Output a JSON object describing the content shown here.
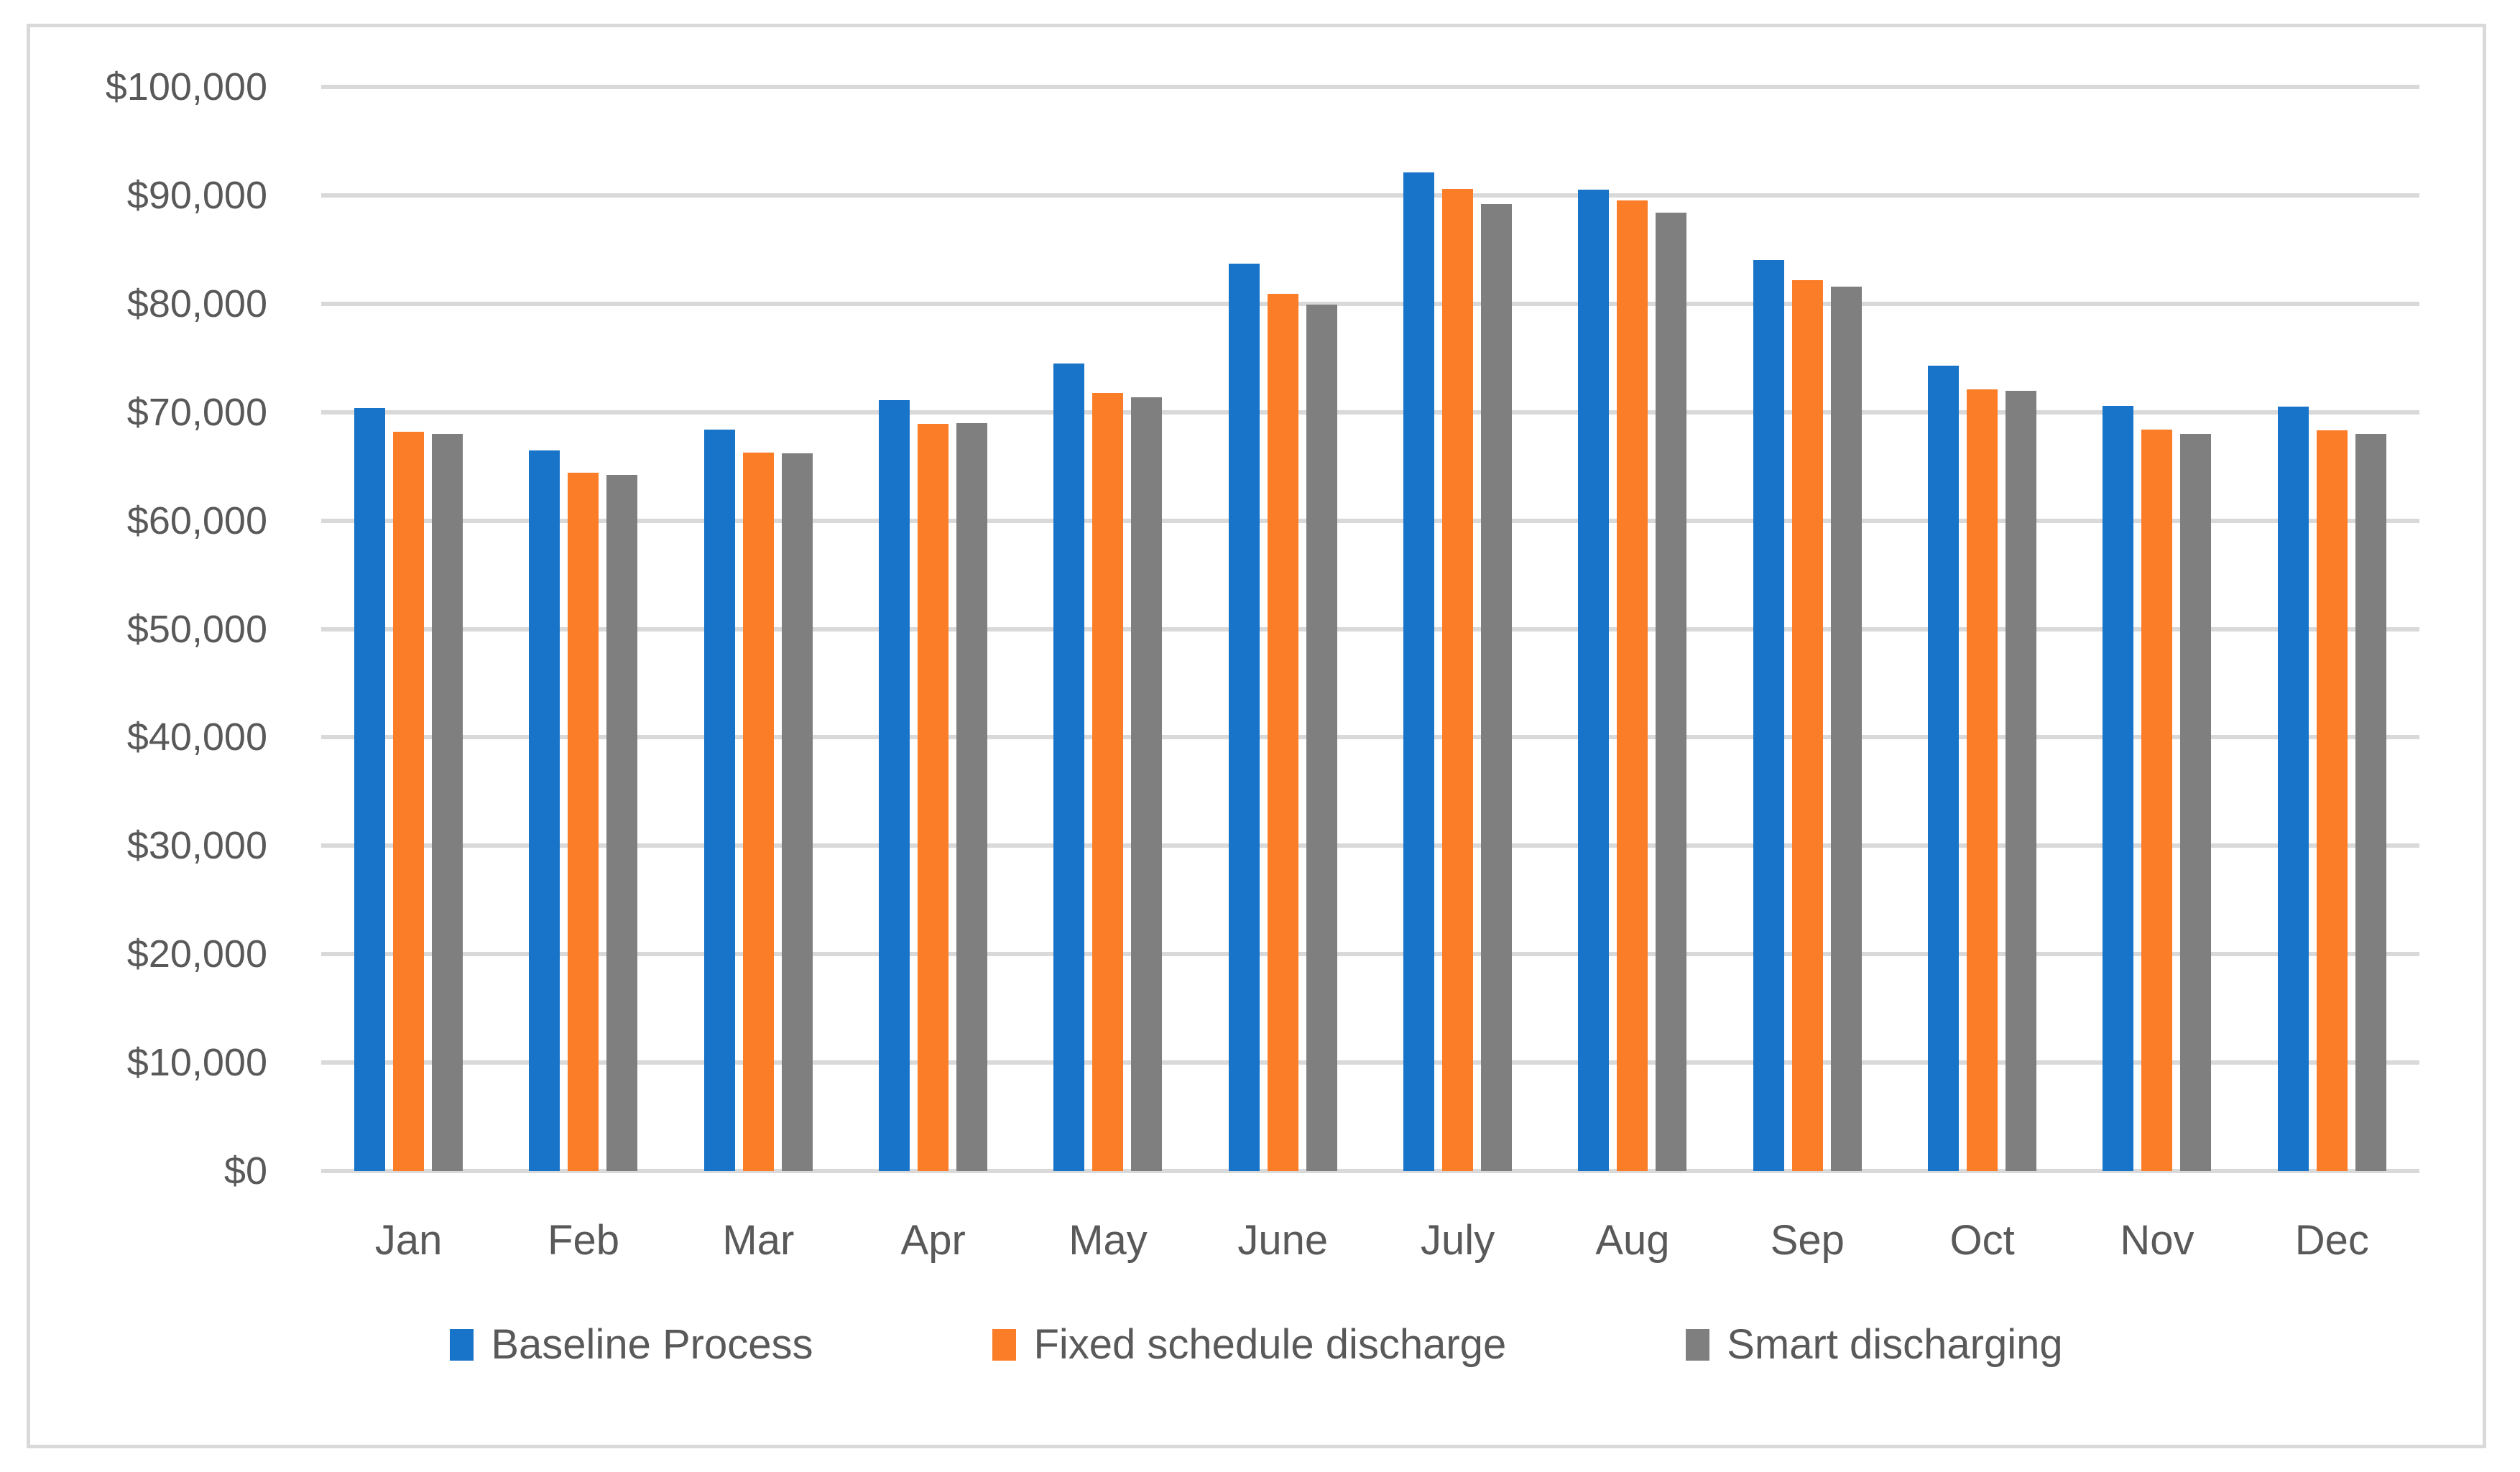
{
  "chart_data": {
    "type": "bar",
    "title": "",
    "categories": [
      "Jan",
      "Feb",
      "Mar",
      "Apr",
      "May",
      "June",
      "July",
      "Aug",
      "Sep",
      "Oct",
      "Nov",
      "Dec"
    ],
    "series": [
      {
        "name": "Baseline Process",
        "color": "#1874C8",
        "values": [
          70400,
          66500,
          68400,
          71100,
          74500,
          83700,
          92100,
          90500,
          84000,
          74300,
          70600,
          70500
        ]
      },
      {
        "name": "Fixed schedule discharge",
        "color": "#FC7D27",
        "values": [
          68200,
          64400,
          66300,
          68900,
          71800,
          80900,
          90600,
          89500,
          82200,
          72100,
          68400,
          68300
        ]
      },
      {
        "name": "Smart discharging",
        "color": "#7F7F7F",
        "values": [
          68000,
          64200,
          66200,
          69000,
          71400,
          79900,
          89200,
          88400,
          81600,
          72000,
          68000,
          68000
        ]
      }
    ],
    "xlabel": "",
    "ylabel": "",
    "ylim": [
      0,
      100000
    ],
    "ytick_step": 10000,
    "ytick_labels": [
      "$0",
      "$10,000",
      "$20,000",
      "$30,000",
      "$40,000",
      "$50,000",
      "$60,000",
      "$70,000",
      "$80,000",
      "$90,000",
      "$100,000"
    ],
    "grid": true,
    "gridline_color": "#D9D9D9",
    "legend_position": "bottom",
    "text_color": "#595959",
    "frame_border_color": "#D9D9D9"
  }
}
